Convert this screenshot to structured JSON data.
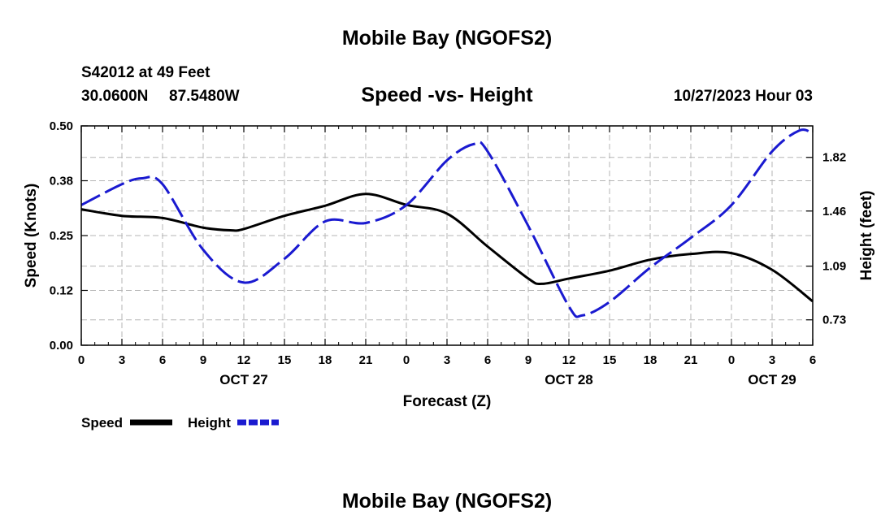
{
  "page": {
    "title": "Mobile Bay (NGOFS2)",
    "footer_title": "Mobile Bay (NGOFS2)",
    "station_line": "S42012 at 49 Feet",
    "coord_lat": "30.0600N",
    "coord_lon": "87.5480W",
    "datetime": "10/27/2023 Hour 03"
  },
  "chart_data": {
    "type": "line",
    "title": "Speed -vs- Height",
    "xlabel": "Forecast (Z)",
    "ylabel": "Speed (Knots)",
    "y2label": "Height (feet)",
    "xlim": [
      0,
      54
    ],
    "ylim": [
      0,
      0.5
    ],
    "y2lim": [
      0.5596,
      2.0312
    ],
    "grid": true,
    "legend_position": "bottom-left",
    "x_ticks": [
      0,
      3,
      6,
      9,
      12,
      15,
      18,
      21,
      24,
      27,
      30,
      33,
      36,
      39,
      42,
      45,
      48,
      51,
      54
    ],
    "x_tick_labels": [
      "0",
      "3",
      "6",
      "9",
      "12",
      "15",
      "18",
      "21",
      "0",
      "3",
      "6",
      "9",
      "12",
      "15",
      "18",
      "21",
      "0",
      "3",
      "6"
    ],
    "date_labels": [
      {
        "x": 12,
        "label": "OCT 27"
      },
      {
        "x": 36,
        "label": "OCT 28"
      },
      {
        "x": 51,
        "label": "OCT 29"
      }
    ],
    "y_ticks": [
      0.0,
      0.125,
      0.25,
      0.375,
      0.5
    ],
    "y_tick_labels": [
      "0.00",
      "0.12",
      "0.25",
      "0.38",
      "0.50"
    ],
    "y2_ticks": [
      0.73,
      1.09,
      1.46,
      1.82
    ],
    "y2_tick_labels": [
      "0.73",
      "1.09",
      "1.46",
      "1.82"
    ],
    "series": [
      {
        "name": "Speed",
        "axis": "left",
        "color": "#000000",
        "style": "solid",
        "x": [
          0,
          3,
          6,
          9,
          11,
          12,
          15,
          18,
          21,
          24,
          27,
          30,
          33,
          34,
          36,
          39,
          42,
          45,
          48,
          51,
          54
        ],
        "y": [
          0.31,
          0.295,
          0.29,
          0.268,
          0.262,
          0.265,
          0.295,
          0.318,
          0.345,
          0.32,
          0.3,
          0.225,
          0.152,
          0.14,
          0.152,
          0.17,
          0.195,
          0.208,
          0.21,
          0.172,
          0.1
        ]
      },
      {
        "name": "Height",
        "axis": "right",
        "color": "#1a1ad0",
        "style": "dashed",
        "x": [
          0,
          3,
          4.5,
          6,
          9,
          12,
          15,
          18,
          21,
          24,
          27,
          29,
          30,
          33,
          36,
          37,
          39,
          42,
          45,
          48,
          51,
          53,
          54
        ],
        "y": [
          1.5,
          1.64,
          1.68,
          1.64,
          1.2,
          0.98,
          1.14,
          1.39,
          1.38,
          1.5,
          1.8,
          1.91,
          1.86,
          1.36,
          0.82,
          0.76,
          0.85,
          1.08,
          1.28,
          1.5,
          1.86,
          2.0,
          1.98
        ]
      }
    ]
  }
}
